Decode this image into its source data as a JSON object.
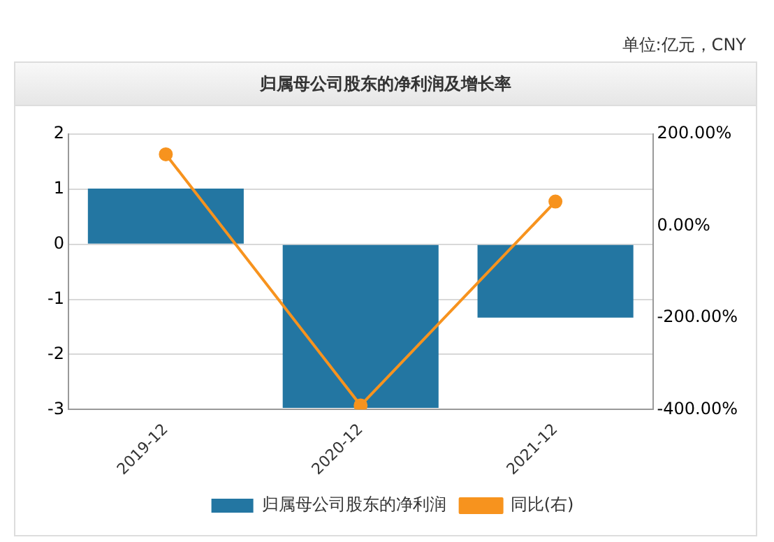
{
  "chart_data": {
    "type": "bar",
    "title": "归属母公司股东的净利润及增长率",
    "annotations": [
      "单位:亿元，CNY"
    ],
    "categories": [
      "2019-12",
      "2020-12",
      "2021-12"
    ],
    "series": [
      {
        "name": "归属母公司股东的净利润",
        "color": "#2376a2",
        "values": [
          1.01,
          -2.97,
          -1.33
        ]
      },
      {
        "name": "同比(右)",
        "type": "line",
        "axis": "y2",
        "color": "#f7931e",
        "marker": "circle",
        "values": [
          156,
          -391,
          53
        ]
      }
    ],
    "ylim": [
      -3,
      2
    ],
    "yticks": [
      -3,
      -2,
      -1,
      0,
      1,
      2
    ],
    "y2lim": [
      -400,
      200
    ],
    "y2ticks": [
      {
        "value": -400,
        "label": "-400.00%"
      },
      {
        "value": -200,
        "label": "-200.00%"
      },
      {
        "value": 0,
        "label": "0.00%"
      },
      {
        "value": 200,
        "label": "200.00%"
      }
    ],
    "grid": "y",
    "legend": "bottom"
  }
}
